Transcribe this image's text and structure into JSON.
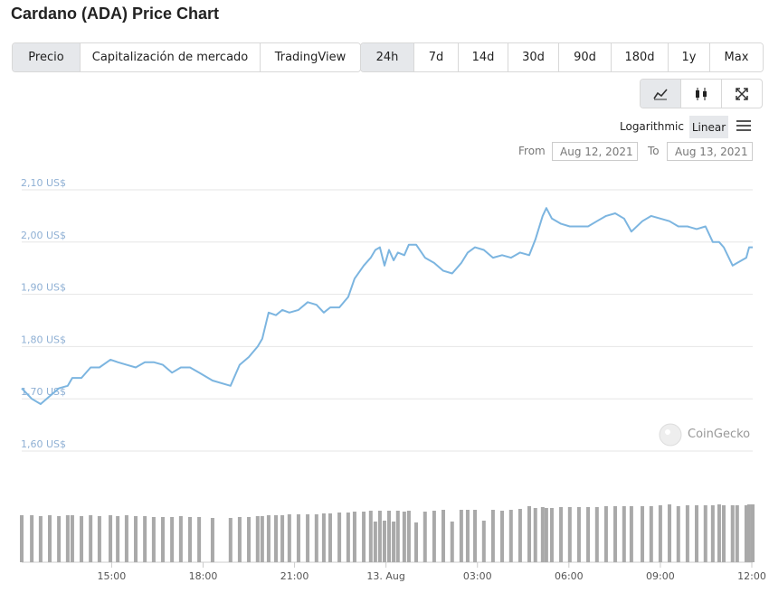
{
  "header": {
    "title": "Cardano (ADA) Price Chart"
  },
  "tabs": [
    "Precio",
    "Capitalización de mercado",
    "TradingView"
  ],
  "selected_tab": 0,
  "ranges": [
    "24h",
    "7d",
    "14d",
    "30d",
    "90d",
    "180d",
    "1y",
    "Max"
  ],
  "selected_range": 0,
  "scale_options": [
    "Logarithmic",
    "Linear"
  ],
  "selected_scale": 1,
  "date_range": {
    "from_label": "From",
    "from": "Aug 12, 2021",
    "to_label": "To",
    "to": "Aug 13, 2021"
  },
  "watermark": "CoinGecko",
  "chart_data": {
    "type": "line",
    "color": "#7cb5e0",
    "log_scale": false,
    "grid": true,
    "x": [
      12.05,
      12.38,
      12.67,
      12.97,
      13.27,
      13.56,
      13.71,
      14.01,
      14.31,
      14.6,
      14.96,
      15.2,
      15.49,
      15.79,
      16.09,
      16.38,
      16.68,
      16.98,
      17.27,
      17.57,
      17.87,
      18.31,
      18.9,
      19.2,
      19.5,
      19.79,
      19.94,
      20.15,
      20.39,
      20.6,
      20.83,
      21.13,
      21.43,
      21.72,
      21.96,
      22.17,
      22.47,
      22.76,
      22.97,
      23.27,
      23.5,
      23.65,
      23.8,
      23.95,
      24.1,
      24.25,
      24.39,
      24.6,
      24.75,
      24.99,
      25.28,
      25.58,
      25.88,
      26.17,
      26.47,
      26.68,
      26.92,
      27.21,
      27.51,
      27.81,
      28.1,
      28.4,
      28.7,
      28.9,
      29.14,
      29.26,
      29.44,
      29.74,
      30.03,
      30.33,
      30.63,
      30.92,
      31.22,
      31.52,
      31.81,
      32.05,
      32.41,
      32.7,
      33.0,
      33.3,
      33.59,
      33.89,
      34.19,
      34.48,
      34.72,
      34.93,
      35.08,
      35.37,
      35.52,
      35.82,
      35.91,
      36.03
    ],
    "values": [
      1.72,
      1.7,
      1.69,
      1.705,
      1.72,
      1.725,
      1.74,
      1.74,
      1.76,
      1.76,
      1.775,
      1.77,
      1.765,
      1.76,
      1.77,
      1.77,
      1.765,
      1.75,
      1.76,
      1.76,
      1.75,
      1.735,
      1.725,
      1.765,
      1.78,
      1.8,
      1.815,
      1.865,
      1.86,
      1.87,
      1.865,
      1.87,
      1.885,
      1.88,
      1.865,
      1.875,
      1.875,
      1.895,
      1.93,
      1.955,
      1.97,
      1.985,
      1.99,
      1.955,
      1.985,
      1.965,
      1.98,
      1.975,
      1.995,
      1.995,
      1.97,
      1.96,
      1.945,
      1.94,
      1.96,
      1.98,
      1.99,
      1.985,
      1.97,
      1.975,
      1.97,
      1.98,
      1.975,
      2.005,
      2.05,
      2.065,
      2.045,
      2.035,
      2.03,
      2.03,
      2.03,
      2.04,
      2.05,
      2.055,
      2.045,
      2.02,
      2.04,
      2.05,
      2.045,
      2.04,
      2.03,
      2.03,
      2.025,
      2.03,
      2.0,
      2.0,
      1.99,
      1.955,
      1.96,
      1.97,
      1.99,
      1.99
    ],
    "volume": {
      "color": "#a9a9a9",
      "values": [
        52,
        52,
        51,
        52,
        51,
        52,
        52,
        51,
        52,
        51,
        52,
        51,
        52,
        51,
        51,
        50,
        50,
        50,
        51,
        50,
        50,
        49,
        49,
        50,
        50,
        51,
        51,
        52,
        52,
        52,
        53,
        53,
        53,
        53,
        54,
        54,
        55,
        55,
        56,
        56,
        57,
        45,
        57,
        46,
        57,
        45,
        57,
        56,
        57,
        44,
        56,
        57,
        58,
        45,
        58,
        58,
        58,
        46,
        58,
        57,
        58,
        59,
        62,
        60,
        61,
        60,
        60,
        61,
        61,
        61,
        61,
        61,
        62,
        62,
        62,
        62,
        62,
        62,
        63,
        64,
        62,
        63,
        63,
        63,
        63,
        64,
        63,
        63,
        63,
        63,
        64,
        64
      ]
    },
    "vlim": [
      0,
      66
    ],
    "xlim": [
      12.05,
      36.03
    ],
    "xticks": [
      {
        "value": 15,
        "label": "15:00"
      },
      {
        "value": 18,
        "label": "18:00"
      },
      {
        "value": 21,
        "label": "21:00"
      },
      {
        "value": 24,
        "label": "13. Aug"
      },
      {
        "value": 27,
        "label": "03:00"
      },
      {
        "value": 30,
        "label": "06:00"
      },
      {
        "value": 33,
        "label": "09:00"
      },
      {
        "value": 36,
        "label": "12:00"
      }
    ],
    "ylim": [
      1.6,
      2.1
    ],
    "yticks": [
      {
        "value": 1.6,
        "label": "1,60 US$"
      },
      {
        "value": 1.7,
        "label": "1,70 US$"
      },
      {
        "value": 1.8,
        "label": "1,80 US$"
      },
      {
        "value": 1.9,
        "label": "1,90 US$"
      },
      {
        "value": 2.0,
        "label": "2,00 US$"
      },
      {
        "value": 2.1,
        "label": "2,10 US$"
      }
    ]
  }
}
